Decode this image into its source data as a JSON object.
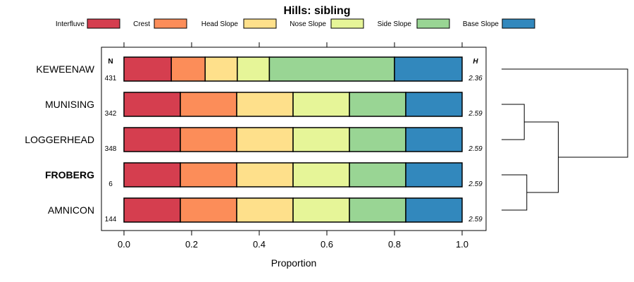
{
  "chart_data": {
    "type": "bar",
    "subtype": "stacked-proportion-horizontal",
    "title": "Hills: sibling",
    "xlabel": "Proportion",
    "xlim": [
      0,
      1
    ],
    "xticks": [
      "0.0",
      "0.2",
      "0.4",
      "0.6",
      "0.8",
      "1.0"
    ],
    "xtick_values": [
      0,
      0.2,
      0.4,
      0.6,
      0.8,
      1.0
    ],
    "n_header": "N",
    "h_header": "H",
    "highlight_row": "FROBERG",
    "legend": [
      {
        "name": "Interfluve",
        "color": "#d53e4f"
      },
      {
        "name": "Crest",
        "color": "#fc8d59"
      },
      {
        "name": "Head Slope",
        "color": "#fee08b"
      },
      {
        "name": "Nose Slope",
        "color": "#e6f598"
      },
      {
        "name": "Side Slope",
        "color": "#99d594"
      },
      {
        "name": "Base Slope",
        "color": "#3288bd"
      }
    ],
    "rows": [
      {
        "name": "KEWEENAW",
        "n": "431",
        "h": "2.36",
        "values": [
          0.14,
          0.1,
          0.095,
          0.095,
          0.37,
          0.2
        ]
      },
      {
        "name": "MUNISING",
        "n": "342",
        "h": "2.59",
        "values": [
          0.1667,
          0.1667,
          0.1667,
          0.1667,
          0.1666,
          0.1666
        ]
      },
      {
        "name": "LOGGERHEAD",
        "n": "348",
        "h": "2.59",
        "values": [
          0.1667,
          0.1667,
          0.1667,
          0.1667,
          0.1666,
          0.1666
        ]
      },
      {
        "name": "FROBERG",
        "n": "6",
        "h": "2.59",
        "values": [
          0.1667,
          0.1667,
          0.1667,
          0.1667,
          0.1666,
          0.1666
        ]
      },
      {
        "name": "AMNICON",
        "n": "144",
        "h": "2.59",
        "values": [
          0.1667,
          0.1667,
          0.1667,
          0.1667,
          0.1666,
          0.1666
        ]
      }
    ],
    "dendrogram": {
      "type": "dendrogram",
      "description": "hierarchical clustering of rows",
      "merges": [
        {
          "left": "MUNISING",
          "right": "LOGGERHEAD",
          "height": 0.18
        },
        {
          "left": "FROBERG",
          "right": "AMNICON",
          "height": 0.2
        },
        {
          "left": "cluster-munising-loggerhead",
          "right": "cluster-froberg-amnicon",
          "height": 0.45
        },
        {
          "left": "KEWEENAW",
          "right": "cluster-all-others",
          "height": 1.0
        }
      ]
    }
  }
}
